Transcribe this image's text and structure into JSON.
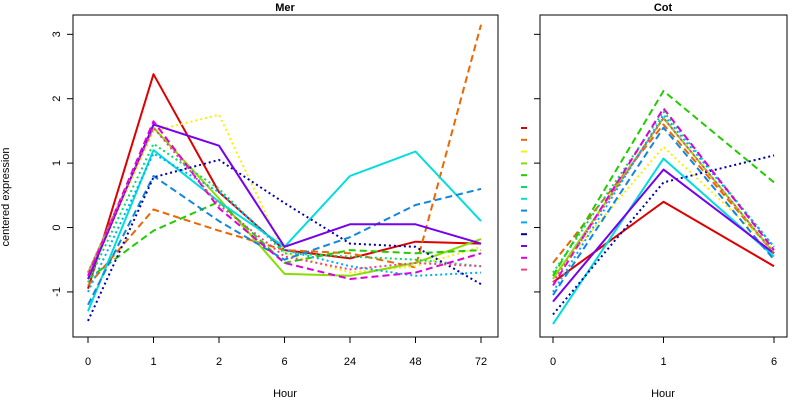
{
  "chart_data": [
    {
      "type": "line",
      "title": "Mer",
      "xlabel": "Hour",
      "ylabel": "centered expression",
      "categories": [
        "0",
        "1",
        "2",
        "6",
        "24",
        "48",
        "72"
      ],
      "ylim": [
        -1.7,
        3.3
      ],
      "yticks": [
        -1,
        0,
        1,
        2,
        3
      ],
      "grid": false,
      "series": [
        {
          "color": "#dd0000",
          "dash": "solid",
          "values": [
            -0.95,
            2.38,
            0.55,
            -0.35,
            -0.48,
            -0.22,
            -0.25
          ]
        },
        {
          "color": "#ee6600",
          "dash": "dashed",
          "values": [
            -0.9,
            0.28,
            -0.05,
            -0.35,
            -0.4,
            -0.62,
            3.15
          ]
        },
        {
          "color": "#ffee00",
          "dash": "dotted",
          "values": [
            -0.8,
            1.5,
            1.75,
            -0.4,
            -0.7,
            -0.6,
            -0.3
          ]
        },
        {
          "color": "#88dd00",
          "dash": "solid",
          "values": [
            -0.7,
            1.55,
            0.45,
            -0.72,
            -0.75,
            -0.55,
            -0.18
          ]
        },
        {
          "color": "#22cc00",
          "dash": "dashed",
          "values": [
            -0.8,
            -0.05,
            0.4,
            -0.55,
            -0.35,
            -0.4,
            -0.35
          ]
        },
        {
          "color": "#00dd66",
          "dash": "dotted",
          "values": [
            -0.85,
            1.3,
            0.6,
            -0.4,
            -0.45,
            -0.5,
            -0.6
          ]
        },
        {
          "color": "#00dddd",
          "dash": "solid",
          "values": [
            -1.3,
            1.2,
            0.4,
            -0.3,
            0.8,
            1.18,
            0.1
          ]
        },
        {
          "color": "#1188dd",
          "dash": "dashed",
          "values": [
            -1.2,
            0.8,
            0.1,
            -0.5,
            -0.15,
            0.35,
            0.6
          ]
        },
        {
          "color": "#00aaff",
          "dash": "dotted",
          "values": [
            -1.0,
            1.15,
            0.55,
            -0.35,
            -0.6,
            -0.75,
            -0.7
          ]
        },
        {
          "color": "#0000aa",
          "dash": "dotted",
          "values": [
            -1.45,
            0.78,
            1.05,
            0.38,
            -0.25,
            -0.3,
            -0.88
          ]
        },
        {
          "color": "#7700ee",
          "dash": "solid",
          "values": [
            -0.8,
            1.6,
            1.27,
            -0.3,
            0.05,
            0.05,
            -0.25
          ]
        },
        {
          "color": "#dd00dd",
          "dash": "dashed",
          "values": [
            -0.75,
            1.65,
            0.3,
            -0.55,
            -0.8,
            -0.7,
            -0.4
          ]
        },
        {
          "color": "#ee4488",
          "dash": "dotted",
          "values": [
            -0.7,
            1.55,
            0.35,
            -0.45,
            -0.65,
            -0.55,
            -0.6
          ]
        }
      ]
    },
    {
      "type": "line",
      "title": "Cot",
      "xlabel": "Hour",
      "ylabel": "",
      "categories": [
        "0",
        "1",
        "6"
      ],
      "ylim": [
        -1.7,
        3.3
      ],
      "grid": false,
      "series": [
        {
          "color": "#dd0000",
          "dash": "solid",
          "values": [
            -0.85,
            0.4,
            -0.6
          ]
        },
        {
          "color": "#ee6600",
          "dash": "dashed",
          "values": [
            -0.55,
            1.6,
            -0.4
          ]
        },
        {
          "color": "#ffee00",
          "dash": "dotted",
          "values": [
            -0.75,
            1.25,
            -0.35
          ]
        },
        {
          "color": "#88dd00",
          "dash": "solid",
          "values": [
            -0.8,
            1.7,
            -0.4
          ]
        },
        {
          "color": "#22cc00",
          "dash": "dashed",
          "values": [
            -0.75,
            2.12,
            0.7
          ]
        },
        {
          "color": "#00dd66",
          "dash": "dotted",
          "values": [
            -0.7,
            1.8,
            -0.3
          ]
        },
        {
          "color": "#00dddd",
          "dash": "solid",
          "values": [
            -1.5,
            1.07,
            -0.45
          ]
        },
        {
          "color": "#1188dd",
          "dash": "dashed",
          "values": [
            -1.05,
            1.55,
            -0.5
          ]
        },
        {
          "color": "#00aaff",
          "dash": "dotted",
          "values": [
            -1.0,
            1.75,
            -0.3
          ]
        },
        {
          "color": "#0000aa",
          "dash": "dotted",
          "values": [
            -1.35,
            0.7,
            1.12
          ]
        },
        {
          "color": "#7700ee",
          "dash": "solid",
          "values": [
            -1.15,
            0.9,
            -0.4
          ]
        },
        {
          "color": "#dd00dd",
          "dash": "dashed",
          "values": [
            -0.9,
            1.85,
            -0.35
          ]
        },
        {
          "color": "#ee4488",
          "dash": "dotted",
          "values": [
            -0.85,
            1.7,
            -0.4
          ]
        }
      ]
    }
  ]
}
